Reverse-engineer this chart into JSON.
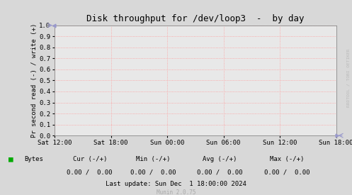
{
  "title": "Disk throughput for /dev/loop3  -  by day",
  "ylabel": "Pr second read (-) / write (+)",
  "ylim": [
    0.0,
    1.0
  ],
  "yticks": [
    0.0,
    0.1,
    0.2,
    0.3,
    0.4,
    0.5,
    0.6,
    0.7,
    0.8,
    0.9,
    1.0
  ],
  "xtick_labels": [
    "Sat 12:00",
    "Sat 18:00",
    "Sun 00:00",
    "Sun 06:00",
    "Sun 12:00",
    "Sun 18:00"
  ],
  "bg_color": "#d8d8d8",
  "plot_bg_color": "#e8e8e8",
  "grid_color": "#ff9999",
  "title_fontsize": 9,
  "axis_fontsize": 6.5,
  "tick_fontsize": 6.5,
  "legend_label": "Bytes",
  "legend_color": "#00aa00",
  "cur_label": "Cur (-/+)",
  "min_label": "Min (-/+)",
  "avg_label": "Avg (-/+)",
  "max_label": "Max (-/+)",
  "cur_val": "0.00 /  0.00",
  "min_val": "0.00 /  0.00",
  "avg_val": "0.00 /  0.00",
  "max_val": "0.00 /  0.00",
  "last_update": "Last update: Sun Dec  1 18:00:00 2024",
  "munin_version": "Munin 2.0.75",
  "watermark": "RRDTOOL / TOBI OETIKER",
  "arrow_color": "#9999cc"
}
